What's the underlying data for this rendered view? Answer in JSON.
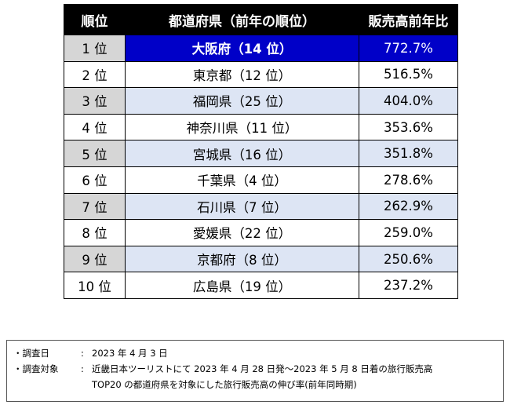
{
  "table": {
    "headers": [
      "順位",
      "都道府県（前年の順位）",
      "販売高前年比"
    ],
    "rows": [
      {
        "rank": "1 位",
        "prefecture": "大阪府（14 位）",
        "ratio": "772.7%"
      },
      {
        "rank": "2 位",
        "prefecture": "東京都（12 位）",
        "ratio": "516.5%"
      },
      {
        "rank": "3 位",
        "prefecture": "福岡県（25 位）",
        "ratio": "404.0%"
      },
      {
        "rank": "4 位",
        "prefecture": "神奈川県（11 位）",
        "ratio": "353.6%"
      },
      {
        "rank": "5 位",
        "prefecture": "宮城県（16 位）",
        "ratio": "351.8%"
      },
      {
        "rank": "6 位",
        "prefecture": "千葉県（4 位）",
        "ratio": "278.6%"
      },
      {
        "rank": "7 位",
        "prefecture": "石川県（7 位）",
        "ratio": "262.9%"
      },
      {
        "rank": "8 位",
        "prefecture": "愛媛県（22 位）",
        "ratio": "259.0%"
      },
      {
        "rank": "9 位",
        "prefecture": "京都府（8 位）",
        "ratio": "250.6%"
      },
      {
        "rank": "10 位",
        "prefecture": "広島県（19 位）",
        "ratio": "237.2%"
      }
    ]
  },
  "notes": {
    "survey_date_label": "・調査日",
    "survey_date_value": "2023 年 4 月 3 日",
    "target_label": "・調査対象",
    "target_value_line1": "近畿日本ツーリストにて 2023 年 4 月 28 日発～2023 年 5 月 8 日着の旅行販売高",
    "target_value_line2": "TOP20 の都道府県を対象にした旅行販売高の伸び率(前年同時期)",
    "colon": ":"
  },
  "colors": {
    "header_bg": "#000000",
    "highlight_bg": "#0000c8",
    "odd_row_bg": "#dde5f4",
    "rank_cell_bg": "#d6d6d6"
  }
}
